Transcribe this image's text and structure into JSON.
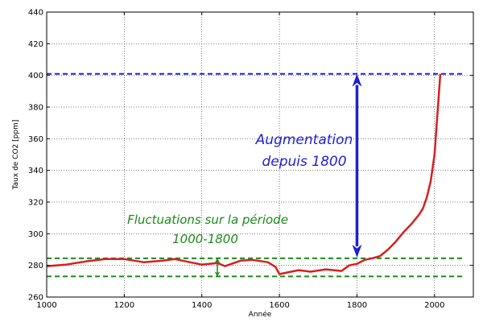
{
  "chart_data": {
    "type": "line",
    "title": "",
    "xlabel": "Année",
    "ylabel": "Taux de CO2 [ppm]",
    "xlim": [
      1000,
      2100
    ],
    "ylim": [
      260,
      440
    ],
    "xticks": [
      1000,
      1200,
      1400,
      1600,
      1800,
      2000
    ],
    "yticks": [
      260,
      280,
      300,
      320,
      340,
      360,
      380,
      400,
      420,
      440
    ],
    "grid": true,
    "series": [
      {
        "color": "#d62020",
        "x": [
          1000,
          1050,
          1100,
          1150,
          1200,
          1250,
          1300,
          1330,
          1350,
          1400,
          1440,
          1460,
          1500,
          1530,
          1570,
          1590,
          1600,
          1620,
          1650,
          1680,
          1720,
          1760,
          1780,
          1800,
          1820,
          1840,
          1860,
          1880,
          1900,
          1920,
          1940,
          1950,
          1960,
          1970,
          1980,
          1990,
          2000,
          2010,
          2015
        ],
        "y": [
          279.5,
          280.5,
          282.5,
          284,
          284,
          282,
          283,
          284,
          283,
          280.5,
          281.5,
          279.5,
          283,
          283.5,
          282,
          279,
          274.5,
          275.5,
          277,
          276,
          277.5,
          276.5,
          280,
          281,
          283.5,
          284.5,
          286,
          290,
          295,
          301,
          306,
          309,
          312,
          316,
          323,
          333,
          350,
          384,
          401
        ]
      }
    ],
    "reference_lines": [
      {
        "y": 401,
        "color": "#2020e0",
        "style": "dashed"
      },
      {
        "y": 284.5,
        "color": "#1a8c1a",
        "style": "dashed"
      },
      {
        "y": 273,
        "color": "#1a8c1a",
        "style": "dashed"
      }
    ],
    "arrows": [
      {
        "x": 1800,
        "y_from": 285,
        "y_to": 401,
        "color": "#1f1fd6"
      },
      {
        "x": 1440,
        "y_from": 273,
        "y_to": 284.5,
        "color": "#1a8c1a"
      }
    ],
    "annotations": [
      {
        "lines": [
          "Augmentation",
          "depuis 1800"
        ],
        "color": "#1f1fd6"
      },
      {
        "lines": [
          "Fluctuations sur la période",
          "1000-1800"
        ],
        "color": "#1a8c1a"
      }
    ]
  }
}
